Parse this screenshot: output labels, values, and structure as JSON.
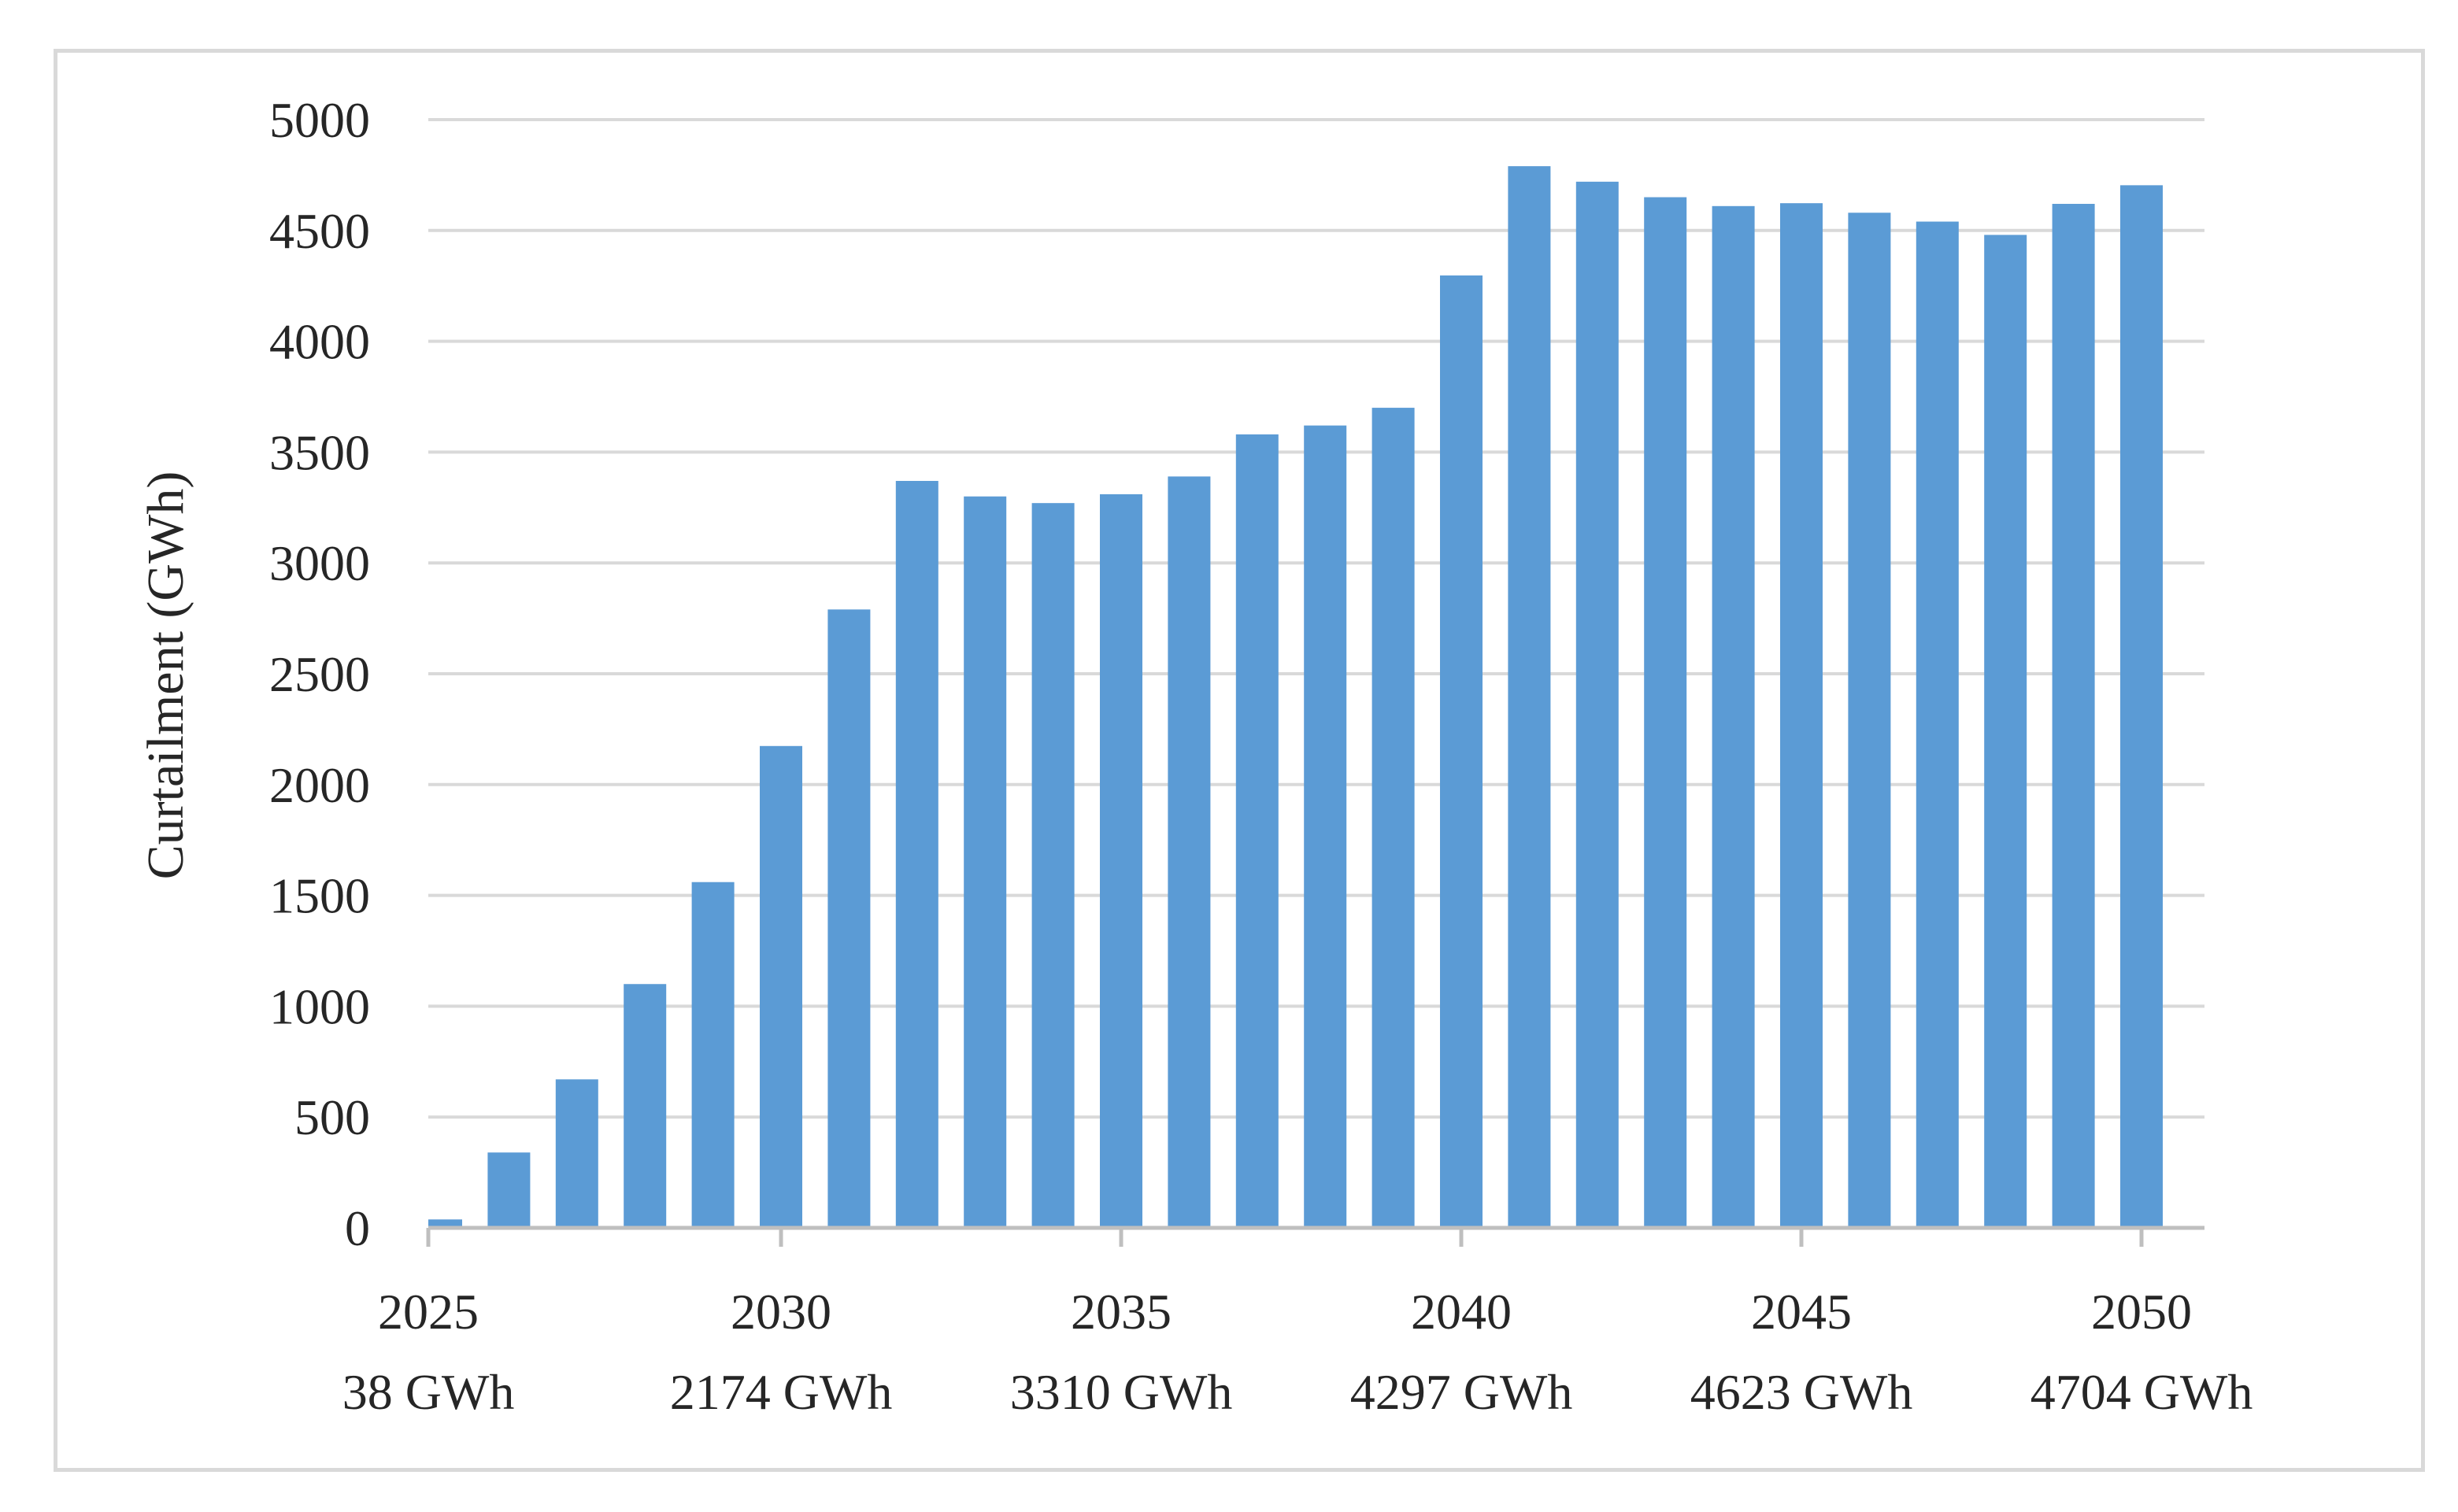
{
  "chart_data": {
    "type": "bar",
    "title": "",
    "xlabel": "",
    "ylabel": "Curtailment  (GWh)",
    "ylim": [
      0,
      5000
    ],
    "yticks": [
      0,
      500,
      1000,
      1500,
      2000,
      2500,
      3000,
      3500,
      4000,
      4500,
      5000
    ],
    "grid": true,
    "legend": "none",
    "bar_color": "#5b9bd5",
    "grid_color": "#d9d9d9",
    "axis_color": "#bfbfbf",
    "categories": [
      "2025",
      "2026",
      "2027",
      "2028",
      "2029",
      "2030",
      "2031",
      "2032",
      "2033",
      "2034",
      "2035",
      "2036",
      "2037",
      "2038",
      "2039",
      "2040",
      "2041",
      "2042",
      "2043",
      "2044",
      "2045",
      "2046",
      "2047",
      "2048",
      "2049",
      "2050"
    ],
    "values": [
      38,
      340,
      670,
      1100,
      1560,
      2174,
      2790,
      3370,
      3300,
      3270,
      3310,
      3390,
      3580,
      3620,
      3700,
      4297,
      4790,
      4720,
      4650,
      4610,
      4623,
      4580,
      4540,
      4480,
      4620,
      4704
    ],
    "x_labels": [
      {
        "year": "2025",
        "value_label": "38 GWh"
      },
      {
        "year": "2030",
        "value_label": "2174 GWh"
      },
      {
        "year": "2035",
        "value_label": "3310 GWh"
      },
      {
        "year": "2040",
        "value_label": "4297 GWh"
      },
      {
        "year": "2045",
        "value_label": "4623 GWh"
      },
      {
        "year": "2050",
        "value_label": "4704 GWh"
      }
    ]
  }
}
